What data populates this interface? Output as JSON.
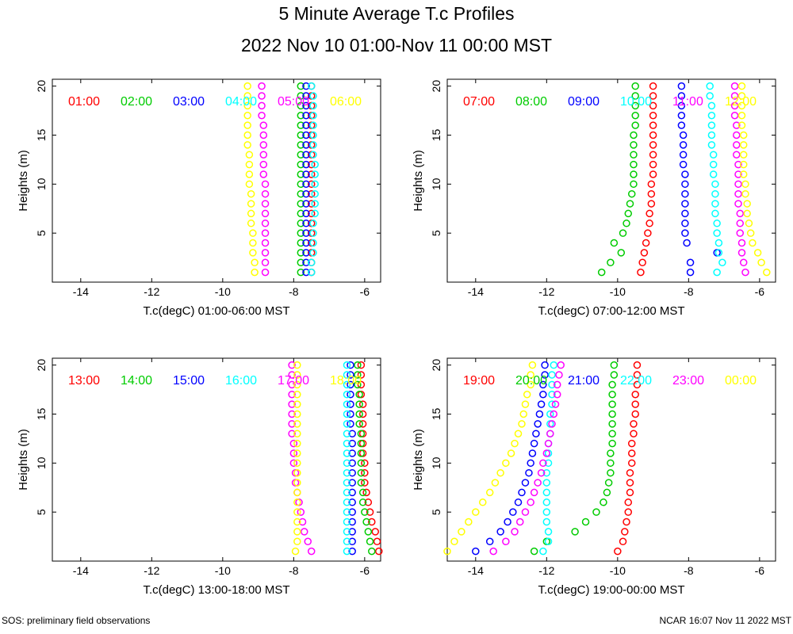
{
  "page": {
    "title": "5 Minute Average T.c Profiles",
    "subtitle": "2022 Nov 10 01:00-Nov 11 00:00 MST",
    "footer_left": "SOS: preliminary field observations",
    "footer_right": "NCAR 16:07 Nov 11 2022 MST"
  },
  "colors": [
    "#ff0000",
    "#00cc00",
    "#0000ff",
    "#00ffff",
    "#ff00ff",
    "#ffff00"
  ],
  "chart_data": [
    {
      "type": "scatter",
      "xlabel": "T.c(degC) 01:00-06:00 MST",
      "ylabel": "Heights (m)",
      "xlim": [
        -14.8,
        -5.55
      ],
      "ylim": [
        0,
        20.7
      ],
      "xticks": [
        -14,
        -12,
        -10,
        -8,
        -6
      ],
      "yticks": [
        5,
        10,
        15,
        20
      ],
      "heights": [
        1,
        2,
        3,
        4,
        5,
        6,
        7,
        8,
        9,
        10,
        11,
        12,
        13,
        14,
        15,
        16,
        17,
        18,
        19,
        20
      ],
      "series": [
        {
          "name": "01:00",
          "values": [
            -7.5,
            -7.5,
            -7.5,
            -7.5,
            -7.5,
            -7.5,
            -7.5,
            -7.5,
            -7.5,
            -7.5,
            -7.5,
            -7.5,
            -7.5,
            -7.5,
            -7.5,
            -7.5,
            -7.5,
            -7.5,
            -7.5,
            -7.5
          ]
        },
        {
          "name": "02:00",
          "values": [
            -7.8,
            -7.8,
            -7.8,
            -7.8,
            -7.8,
            -7.8,
            -7.8,
            -7.8,
            -7.8,
            -7.8,
            -7.8,
            -7.8,
            -7.8,
            -7.8,
            -7.8,
            -7.8,
            -7.8,
            -7.8,
            -7.8,
            -7.8
          ]
        },
        {
          "name": "03:00",
          "values": [
            -7.65,
            -7.65,
            -7.65,
            -7.65,
            -7.65,
            -7.65,
            -7.65,
            -7.65,
            -7.65,
            -7.65,
            -7.65,
            -7.65,
            -7.65,
            -7.65,
            -7.65,
            -7.65,
            -7.65,
            -7.65,
            -7.65,
            -7.65
          ]
        },
        {
          "name": "04:00",
          "values": [
            -7.5,
            -7.5,
            -7.45,
            -7.45,
            -7.45,
            -7.45,
            -7.4,
            -7.4,
            -7.4,
            -7.4,
            -7.4,
            -7.4,
            -7.45,
            -7.45,
            -7.45,
            -7.45,
            -7.45,
            -7.45,
            -7.45,
            -7.5
          ]
        },
        {
          "name": "05:00",
          "values": [
            -8.8,
            -8.8,
            -8.8,
            -8.8,
            -8.8,
            -8.8,
            -8.8,
            -8.8,
            -8.8,
            -8.8,
            -8.85,
            -8.85,
            -8.85,
            -8.85,
            -8.85,
            -8.85,
            -8.9,
            -8.9,
            -8.9,
            -8.9
          ]
        },
        {
          "name": "06:00",
          "values": [
            -9.1,
            -9.1,
            -9.15,
            -9.15,
            -9.15,
            -9.2,
            -9.2,
            -9.2,
            -9.2,
            -9.25,
            -9.25,
            -9.25,
            -9.25,
            -9.3,
            -9.3,
            -9.3,
            -9.3,
            -9.3,
            -9.3,
            -9.3
          ]
        }
      ]
    },
    {
      "type": "scatter",
      "xlabel": "T.c(degC) 07:00-12:00 MST",
      "ylabel": "Heights (m)",
      "xlim": [
        -14.8,
        -5.55
      ],
      "ylim": [
        0,
        20.7
      ],
      "xticks": [
        -14,
        -12,
        -10,
        -8,
        -6
      ],
      "yticks": [
        5,
        10,
        15,
        20
      ],
      "heights": [
        1,
        2,
        3,
        4,
        5,
        6,
        7,
        8,
        9,
        10,
        11,
        12,
        13,
        14,
        15,
        16,
        17,
        18,
        19,
        20
      ],
      "series": [
        {
          "name": "07:00",
          "values": [
            -9.35,
            -9.3,
            -9.25,
            -9.2,
            -9.15,
            -9.1,
            -9.1,
            -9.05,
            -9.05,
            -9.05,
            -9.0,
            -9.0,
            -9.0,
            -9.0,
            -9.0,
            -9.0,
            -9.0,
            -9.0,
            -9.0,
            -9.0
          ]
        },
        {
          "name": "08:00",
          "values": [
            -10.45,
            -10.2,
            -9.9,
            -10.1,
            -9.85,
            -9.75,
            -9.7,
            -9.65,
            -9.6,
            -9.55,
            -9.55,
            -9.55,
            -9.55,
            -9.55,
            -9.55,
            -9.5,
            -9.5,
            -9.5,
            -9.5,
            -9.5
          ]
        },
        {
          "name": "09:00",
          "values": [
            -7.95,
            -7.95,
            -7.2,
            -8.05,
            -8.1,
            -8.1,
            -8.1,
            -8.1,
            -8.1,
            -8.1,
            -8.1,
            -8.15,
            -8.15,
            -8.15,
            -8.15,
            -8.2,
            -8.2,
            -8.2,
            -8.2,
            -8.2
          ]
        },
        {
          "name": "10:00",
          "values": [
            -7.2,
            -7.05,
            -7.15,
            -7.15,
            -7.2,
            -7.2,
            -7.25,
            -7.25,
            -7.25,
            -7.25,
            -7.3,
            -7.3,
            -7.3,
            -7.35,
            -7.35,
            -7.35,
            -7.35,
            -7.35,
            -7.4,
            -7.4
          ]
        },
        {
          "name": "11:00",
          "values": [
            -6.4,
            -6.45,
            -6.5,
            -6.5,
            -6.55,
            -6.55,
            -6.55,
            -6.6,
            -6.6,
            -6.6,
            -6.6,
            -6.6,
            -6.65,
            -6.65,
            -6.65,
            -6.65,
            -6.7,
            -6.7,
            -6.7,
            -6.7
          ]
        },
        {
          "name": "12:00",
          "values": [
            -5.8,
            -5.95,
            -6.05,
            -6.2,
            -6.25,
            -6.3,
            -6.35,
            -6.35,
            -6.4,
            -6.4,
            -6.45,
            -6.45,
            -6.45,
            -6.45,
            -6.45,
            -6.5,
            -6.5,
            -6.5,
            -6.5,
            -6.5
          ]
        }
      ]
    },
    {
      "type": "scatter",
      "xlabel": "T.c(degC) 13:00-18:00 MST",
      "ylabel": "Heights (m)",
      "xlim": [
        -14.8,
        -5.55
      ],
      "ylim": [
        0,
        20.7
      ],
      "xticks": [
        -14,
        -12,
        -10,
        -8,
        -6
      ],
      "yticks": [
        5,
        10,
        15,
        20
      ],
      "heights": [
        1,
        2,
        3,
        4,
        5,
        6,
        7,
        8,
        9,
        10,
        11,
        12,
        13,
        14,
        15,
        16,
        17,
        18,
        19,
        20
      ],
      "series": [
        {
          "name": "13:00",
          "values": [
            -5.6,
            -5.65,
            -5.7,
            -5.8,
            -5.85,
            -5.9,
            -5.95,
            -6.0,
            -6.0,
            -6.0,
            -6.05,
            -6.05,
            -6.05,
            -6.05,
            -6.05,
            -6.05,
            -6.1,
            -6.1,
            -6.1,
            -6.1
          ]
        },
        {
          "name": "14:00",
          "values": [
            -5.8,
            -5.85,
            -5.9,
            -5.95,
            -6.0,
            -6.05,
            -6.05,
            -6.1,
            -6.1,
            -6.1,
            -6.1,
            -6.1,
            -6.1,
            -6.15,
            -6.15,
            -6.15,
            -6.15,
            -6.2,
            -6.2,
            -6.2
          ]
        },
        {
          "name": "15:00",
          "values": [
            -6.35,
            -6.35,
            -6.35,
            -6.35,
            -6.35,
            -6.35,
            -6.35,
            -6.35,
            -6.35,
            -6.35,
            -6.35,
            -6.35,
            -6.35,
            -6.4,
            -6.4,
            -6.4,
            -6.4,
            -6.4,
            -6.4,
            -6.4
          ]
        },
        {
          "name": "16:00",
          "values": [
            -6.5,
            -6.5,
            -6.5,
            -6.5,
            -6.5,
            -6.5,
            -6.5,
            -6.5,
            -6.5,
            -6.5,
            -6.5,
            -6.5,
            -6.5,
            -6.5,
            -6.5,
            -6.5,
            -6.5,
            -6.5,
            -6.5,
            -6.5
          ]
        },
        {
          "name": "17:00",
          "values": [
            -7.5,
            -7.6,
            -7.7,
            -7.75,
            -7.8,
            -7.85,
            -7.9,
            -7.95,
            -7.95,
            -8.0,
            -8.0,
            -8.0,
            -8.05,
            -8.05,
            -8.05,
            -8.05,
            -8.05,
            -8.05,
            -8.05,
            -8.05
          ]
        },
        {
          "name": "18:00",
          "values": [
            -7.95,
            -7.9,
            -7.9,
            -7.9,
            -7.9,
            -7.9,
            -7.9,
            -7.9,
            -7.9,
            -7.9,
            -7.9,
            -7.9,
            -7.9,
            -7.9,
            -7.9,
            -7.9,
            -7.9,
            -7.9,
            -7.9,
            -7.9
          ]
        }
      ]
    },
    {
      "type": "scatter",
      "xlabel": "T.c(degC) 19:00-00:00 MST",
      "ylabel": "Heights (m)",
      "xlim": [
        -14.8,
        -5.55
      ],
      "ylim": [
        0,
        20.7
      ],
      "xticks": [
        -14,
        -12,
        -10,
        -8,
        -6
      ],
      "yticks": [
        5,
        10,
        15,
        20
      ],
      "heights": [
        1,
        2,
        3,
        4,
        5,
        6,
        7,
        8,
        9,
        10,
        11,
        12,
        13,
        14,
        15,
        16,
        17,
        18,
        19,
        20
      ],
      "series": [
        {
          "name": "19:00",
          "values": [
            -10.0,
            -9.85,
            -9.8,
            -9.75,
            -9.7,
            -9.7,
            -9.65,
            -9.65,
            -9.65,
            -9.6,
            -9.6,
            -9.6,
            -9.55,
            -9.55,
            -9.5,
            -9.5,
            -9.5,
            -9.45,
            -9.45,
            -9.45
          ]
        },
        {
          "name": "20:00",
          "values": [
            -12.35,
            -12.0,
            -11.2,
            -10.9,
            -10.6,
            -10.4,
            -10.3,
            -10.25,
            -10.2,
            -10.2,
            -10.2,
            -10.15,
            -10.15,
            -10.15,
            -10.15,
            -10.15,
            -10.15,
            -10.15,
            -10.1,
            -10.1
          ]
        },
        {
          "name": "21:00",
          "values": [
            -14.0,
            -13.6,
            -13.3,
            -13.1,
            -12.95,
            -12.8,
            -12.7,
            -12.6,
            -12.5,
            -12.45,
            -12.4,
            -12.35,
            -12.3,
            -12.25,
            -12.2,
            -12.15,
            -12.1,
            -12.1,
            -12.05,
            -12.05
          ]
        },
        {
          "name": "22:00",
          "values": [
            -12.1,
            -11.95,
            -11.95,
            -12.0,
            -12.0,
            -12.0,
            -12.0,
            -12.0,
            -12.0,
            -11.95,
            -11.95,
            -11.95,
            -11.9,
            -11.9,
            -11.9,
            -11.85,
            -11.85,
            -11.85,
            -11.85,
            -11.8
          ]
        },
        {
          "name": "23:00",
          "values": [
            -13.5,
            -13.15,
            -12.9,
            -12.75,
            -12.6,
            -12.45,
            -12.35,
            -12.25,
            -12.15,
            -12.1,
            -12.0,
            -11.95,
            -11.9,
            -11.85,
            -11.8,
            -11.75,
            -11.7,
            -11.7,
            -11.65,
            -11.6
          ]
        },
        {
          "name": "00:00",
          "values": [
            -14.8,
            -14.6,
            -14.4,
            -14.2,
            -14.0,
            -13.8,
            -13.6,
            -13.45,
            -13.3,
            -13.15,
            -13.0,
            -12.9,
            -12.8,
            -12.7,
            -12.65,
            -12.6,
            -12.55,
            -12.45,
            -12.45,
            -12.4
          ]
        }
      ]
    }
  ]
}
